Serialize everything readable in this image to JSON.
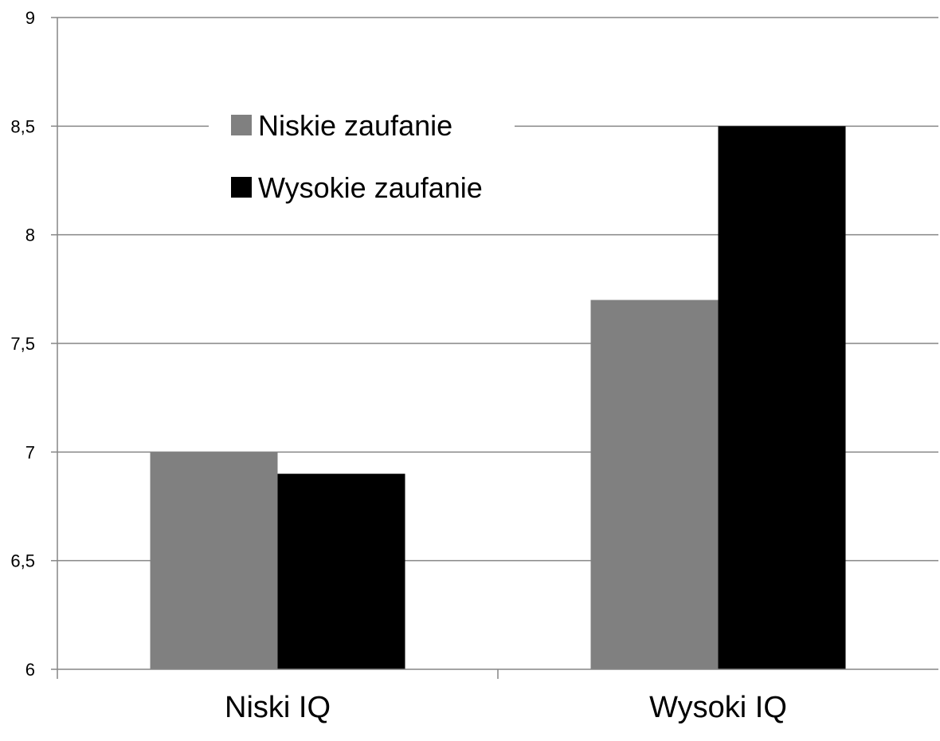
{
  "chart_data": {
    "type": "bar",
    "title": "",
    "xlabel": "",
    "ylabel": "",
    "categories": [
      "Niski IQ",
      "Wysoki IQ"
    ],
    "series": [
      {
        "name": "Niskie zaufanie",
        "values": [
          7.0,
          7.7
        ],
        "color": "#808080"
      },
      {
        "name": "Wysokie zaufanie",
        "values": [
          6.9,
          8.5
        ],
        "color": "#000000"
      }
    ],
    "ylim": [
      6,
      9
    ],
    "yticks": [
      6,
      6.5,
      7,
      7.5,
      8,
      8.5,
      9
    ],
    "ytick_labels": [
      "6",
      "6,5",
      "7",
      "7,5",
      "8",
      "8,5",
      "9"
    ],
    "grid": true,
    "legend_position": "top-left"
  }
}
